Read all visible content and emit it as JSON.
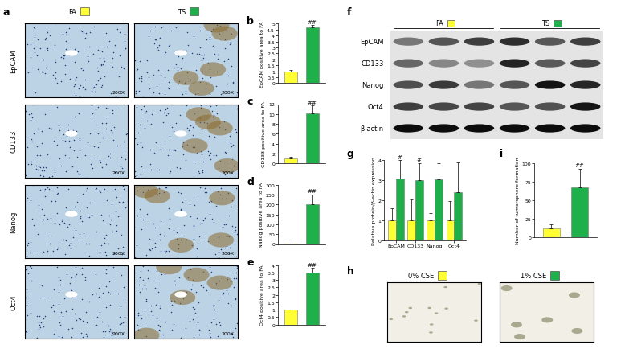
{
  "panel_a": {
    "panel": "a",
    "columns": [
      {
        "name": "FA",
        "color": "#ffff33"
      },
      {
        "name": "TS",
        "color": "#1faf4b"
      }
    ],
    "rows": [
      "EpCAM",
      "CD133",
      "Nanog",
      "Oct4"
    ],
    "magnification": "200X"
  },
  "chart_data": [
    {
      "panel": "b",
      "type": "bar",
      "categories": [
        null,
        null
      ],
      "values": [
        1,
        4.7
      ],
      "errors": [
        0.1,
        0.2
      ],
      "colors": [
        "#ffff33",
        "#1faf4b"
      ],
      "annotations": [
        null,
        "##"
      ],
      "y_label": "EpCAM positive area to FA",
      "ylim": [
        0,
        5
      ],
      "yticks": [
        0,
        0.5,
        1,
        1.5,
        2,
        2.5,
        3,
        3.5,
        4,
        4.5,
        5
      ]
    },
    {
      "panel": "c",
      "type": "bar",
      "categories": [
        null,
        null
      ],
      "values": [
        1,
        10.2
      ],
      "errors": [
        0.3,
        1.5
      ],
      "colors": [
        "#ffff33",
        "#1faf4b"
      ],
      "annotations": [
        null,
        "##"
      ],
      "y_label": "CD133 positive area to FA",
      "ylim": [
        0,
        12
      ],
      "yticks": [
        0,
        2,
        4,
        6,
        8,
        10,
        12
      ]
    },
    {
      "panel": "d",
      "type": "bar",
      "categories": [
        null,
        null
      ],
      "values": [
        1,
        200
      ],
      "errors": [
        1,
        50
      ],
      "colors": [
        "#ffff33",
        "#1faf4b"
      ],
      "annotations": [
        null,
        "##"
      ],
      "y_label": "Nanog positive area to FA",
      "ylim": [
        0,
        300
      ],
      "yticks": [
        0,
        50,
        100,
        150,
        200,
        250,
        300
      ]
    },
    {
      "panel": "e",
      "type": "bar",
      "categories": [
        null,
        null
      ],
      "values": [
        1,
        3.5
      ],
      "errors": [
        0.03,
        0.3
      ],
      "colors": [
        "#ffff33",
        "#1faf4b"
      ],
      "annotations": [
        null,
        "##"
      ],
      "y_label": "Oct4 positive area to FA",
      "ylim": [
        0,
        4
      ],
      "yticks": [
        0,
        0.5,
        1,
        1.5,
        2,
        2.5,
        3,
        3.5,
        4
      ]
    },
    {
      "panel": "g",
      "type": "bar",
      "categories": [
        "EpCAM",
        "CD133",
        "Nanog",
        "Oct4"
      ],
      "series": [
        {
          "color": "#ffff33",
          "values": [
            1,
            1,
            1,
            1
          ],
          "errors": [
            0.6,
            1.05,
            0.35,
            0.95
          ]
        },
        {
          "color": "#1faf4b",
          "values": [
            3.1,
            3.0,
            3.05,
            2.4
          ],
          "errors": [
            0.9,
            0.85,
            0.8,
            1.5
          ],
          "annotations": [
            "#",
            "#",
            null,
            null
          ]
        }
      ],
      "y_label": "Relative protein/β-actin expression",
      "ylim": [
        0,
        4
      ],
      "yticks": [
        0,
        1,
        2,
        3,
        4
      ]
    },
    {
      "panel": "i",
      "type": "bar",
      "categories": [
        null,
        null
      ],
      "values": [
        12,
        68
      ],
      "errors": [
        5,
        25
      ],
      "colors": [
        "#ffff33",
        "#1faf4b"
      ],
      "annotations": [
        null,
        "##"
      ],
      "y_label": "Number of tumorsphere formation",
      "ylim": [
        0,
        100
      ],
      "yticks": [
        0,
        25,
        50,
        75,
        100
      ]
    }
  ],
  "panel_f": {
    "panel": "f",
    "groups": [
      {
        "name": "FA",
        "color": "#ffff33"
      },
      {
        "name": "TS",
        "color": "#1faf4b"
      }
    ],
    "rows": [
      "EpCAM",
      "CD133",
      "Nanog",
      "Oct4",
      "β-actin"
    ]
  },
  "panel_h": {
    "panel": "h",
    "images": [
      {
        "label": "0% CSE",
        "color": "#ffff33"
      },
      {
        "label": "1% CSE",
        "color": "#1faf4b"
      }
    ]
  }
}
